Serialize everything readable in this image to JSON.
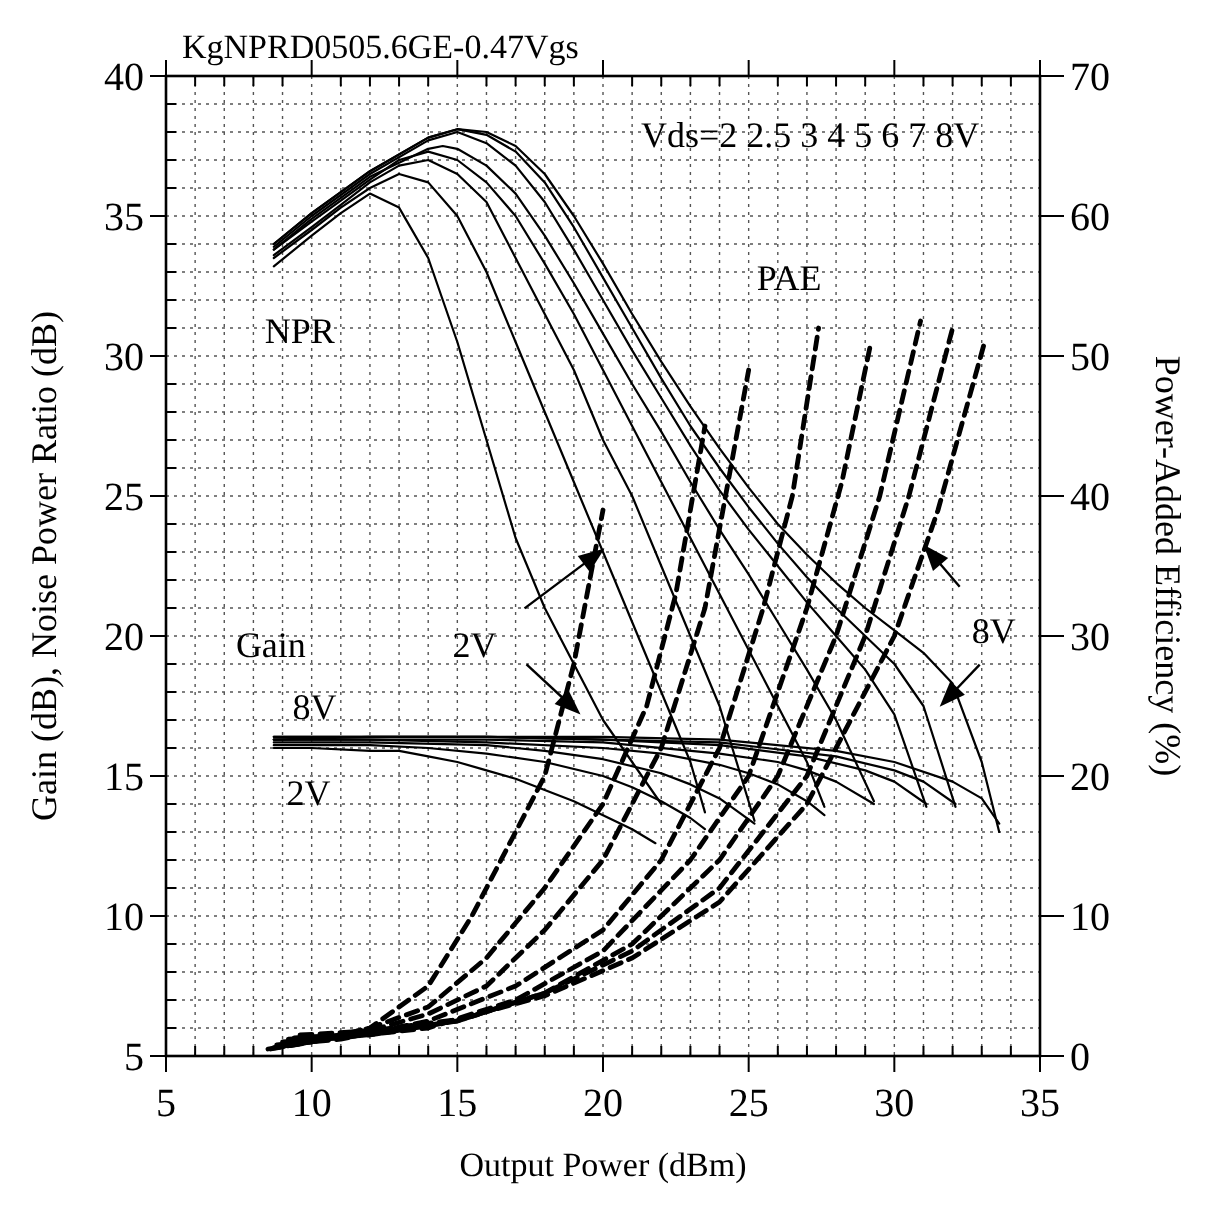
{
  "chart_data": {
    "type": "line",
    "title": "KgNPRD0505.6GE-0.47Vgs",
    "xlabel": "Output Power (dBm)",
    "ylabel": "Gain (dB), Noise Power Ratio (dB)",
    "y2label": "Power-Added Efficiency (%)",
    "xlim": [
      5,
      35
    ],
    "ylim": [
      5,
      40
    ],
    "y2lim": [
      0,
      70
    ],
    "xticks": [
      5,
      {
        "value": 6,
        "label": null
      },
      {
        "value": 7,
        "label": null
      },
      {
        "value": 8,
        "label": null
      },
      {
        "value": 9,
        "label": null
      },
      10,
      {
        "value": 11,
        "label": null
      },
      {
        "value": 12,
        "label": null
      },
      {
        "value": 13,
        "label": null
      },
      {
        "value": 14,
        "label": null
      },
      15,
      {
        "value": 16,
        "label": null
      },
      {
        "value": 17,
        "label": null
      },
      {
        "value": 18,
        "label": null
      },
      {
        "value": 19,
        "label": null
      },
      20,
      {
        "value": 21,
        "label": null
      },
      {
        "value": 22,
        "label": null
      },
      {
        "value": 23,
        "label": null
      },
      {
        "value": 24,
        "label": null
      },
      25,
      {
        "value": 26,
        "label": null
      },
      {
        "value": 27,
        "label": null
      },
      {
        "value": 28,
        "label": null
      },
      {
        "value": 29,
        "label": null
      },
      30,
      {
        "value": 31,
        "label": null
      },
      {
        "value": 32,
        "label": null
      },
      {
        "value": 33,
        "label": null
      },
      {
        "value": 34,
        "label": null
      },
      35
    ],
    "yticks": [
      5,
      {
        "value": 6,
        "label": null
      },
      {
        "value": 7,
        "label": null
      },
      {
        "value": 8,
        "label": null
      },
      {
        "value": 9,
        "label": null
      },
      10,
      {
        "value": 11,
        "label": null
      },
      {
        "value": 12,
        "label": null
      },
      {
        "value": 13,
        "label": null
      },
      {
        "value": 14,
        "label": null
      },
      15,
      {
        "value": 16,
        "label": null
      },
      {
        "value": 17,
        "label": null
      },
      {
        "value": 18,
        "label": null
      },
      {
        "value": 19,
        "label": null
      },
      20,
      {
        "value": 21,
        "label": null
      },
      {
        "value": 22,
        "label": null
      },
      {
        "value": 23,
        "label": null
      },
      {
        "value": 24,
        "label": null
      },
      25,
      {
        "value": 26,
        "label": null
      },
      {
        "value": 27,
        "label": null
      },
      {
        "value": 28,
        "label": null
      },
      {
        "value": 29,
        "label": null
      },
      30,
      {
        "value": 31,
        "label": null
      },
      {
        "value": 32,
        "label": null
      },
      {
        "value": 33,
        "label": null
      },
      {
        "value": 34,
        "label": null
      },
      35,
      {
        "value": 36,
        "label": null
      },
      {
        "value": 37,
        "label": null
      },
      {
        "value": 38,
        "label": null
      },
      {
        "value": 39,
        "label": null
      },
      40
    ],
    "y2ticks": [
      0,
      10,
      20,
      30,
      40,
      50,
      60,
      70
    ],
    "grid": true,
    "line_style": "solid",
    "series": [
      {
        "color": "#000000",
        "x": [
          8.7,
          10,
          11,
          12,
          13,
          14,
          15,
          16,
          17,
          18,
          19,
          20,
          21,
          22
        ],
        "values": [
          33.2,
          34.3,
          35.1,
          35.8,
          35.3,
          33.5,
          30.5,
          27,
          23.5,
          21,
          19,
          17,
          15.5,
          14
        ]
      },
      {
        "type": "line",
        "color": "#000000",
        "x": [
          8.7,
          10,
          11,
          12,
          13,
          14,
          15,
          16,
          17,
          18,
          19,
          20,
          21,
          22,
          23,
          23.5
        ],
        "values": [
          33.5,
          34.5,
          35.3,
          36,
          36.5,
          36.2,
          35,
          33,
          30.5,
          28,
          25.5,
          23,
          20.5,
          18,
          15.5,
          13.7
        ]
      },
      {
        "type": "line",
        "color": "#000000",
        "x": [
          8.7,
          10,
          11,
          12,
          13,
          14,
          15,
          16,
          17,
          18,
          19,
          20,
          21,
          22,
          23,
          24,
          25.2
        ],
        "values": [
          33.6,
          34.6,
          35.4,
          36.2,
          36.8,
          37,
          36.5,
          35.5,
          33.5,
          31.5,
          29.5,
          27,
          25,
          22.5,
          20,
          17.5,
          13.4
        ]
      },
      {
        "type": "line",
        "color": "#000000",
        "x": [
          8.7,
          10,
          12,
          13,
          14,
          15,
          16,
          17,
          18,
          19,
          20,
          21,
          22,
          23,
          24,
          25,
          26,
          27,
          27.6
        ],
        "values": [
          33.8,
          34.8,
          36.3,
          37,
          37.3,
          37,
          36.2,
          35,
          33.3,
          31.5,
          29.5,
          27.5,
          25.5,
          23.5,
          21.5,
          19.5,
          17.5,
          15.5,
          13.9
        ]
      },
      {
        "type": "line",
        "color": "#000000",
        "x": [
          8.7,
          10,
          12,
          14,
          14.5,
          15,
          16,
          17,
          18,
          19,
          20,
          21,
          22,
          23,
          24,
          25,
          26,
          27,
          28,
          29.3
        ],
        "values": [
          33.8,
          34.9,
          36.4,
          37.4,
          37.5,
          37.4,
          36.8,
          35.8,
          34.3,
          32.6,
          30.8,
          29,
          27.3,
          25.5,
          23.8,
          22.2,
          20.5,
          18.8,
          17,
          14.1
        ]
      },
      {
        "type": "line",
        "color": "#000000",
        "x": [
          8.7,
          10,
          12,
          14,
          15,
          16,
          17,
          18,
          19,
          20,
          21,
          22,
          23,
          24,
          25,
          26,
          27,
          28,
          29,
          30,
          31.1
        ],
        "values": [
          33.9,
          35,
          36.5,
          37.7,
          38,
          37.6,
          36.8,
          35.5,
          33.8,
          32,
          30.2,
          28.5,
          26.8,
          25.2,
          23.8,
          22.5,
          21.2,
          20,
          18.8,
          17.2,
          13.9
        ]
      },
      {
        "type": "line",
        "color": "#000000",
        "x": [
          8.7,
          10,
          12,
          14,
          15,
          16,
          17,
          18,
          19,
          20,
          21,
          22,
          23,
          24,
          25,
          26,
          27,
          28,
          29,
          30,
          31,
          32.1
        ],
        "values": [
          34,
          35.1,
          36.6,
          37.8,
          38.1,
          37.9,
          37.3,
          36.2,
          34.6,
          32.8,
          31,
          29.2,
          27.5,
          26,
          24.6,
          23.3,
          22.1,
          21,
          20,
          19,
          17.5,
          13.9
        ]
      },
      {
        "type": "line",
        "color": "#000000",
        "x": [
          8.7,
          10,
          12,
          14,
          15,
          16,
          17,
          18,
          19,
          20,
          21,
          22,
          23,
          24,
          25,
          26,
          27,
          28,
          29,
          30,
          31,
          32,
          33,
          33.6
        ],
        "values": [
          34,
          35.1,
          36.6,
          37.8,
          38.1,
          38,
          37.5,
          36.5,
          35,
          33.3,
          31.5,
          29.8,
          28.2,
          26.7,
          25.3,
          24,
          22.9,
          21.9,
          21,
          20.2,
          19.4,
          18.3,
          15.5,
          13
        ]
      },
      {
        "type": "line",
        "color": "#000000",
        "x": [
          8.7,
          10,
          12,
          13,
          14,
          15,
          16,
          17,
          18,
          19,
          20,
          21,
          21.8
        ],
        "values": [
          16,
          16,
          15.9,
          15.9,
          15.7,
          15.5,
          15.2,
          14.9,
          14.5,
          14.1,
          13.6,
          13.1,
          12.6
        ]
      },
      {
        "type": "line",
        "color": "#000000",
        "x": [
          8.7,
          10,
          12,
          14,
          16,
          18,
          20,
          21,
          22,
          23,
          23.5
        ],
        "values": [
          16.1,
          16.1,
          16.1,
          16,
          15.8,
          15.5,
          15,
          14.6,
          14.1,
          13.5,
          13.1
        ]
      },
      {
        "type": "line",
        "color": "#000000",
        "x": [
          8.7,
          12,
          16,
          18,
          20,
          22,
          23,
          24,
          25.2
        ],
        "values": [
          16.2,
          16.2,
          16.1,
          15.9,
          15.6,
          15.1,
          14.7,
          14.2,
          13.3
        ]
      },
      {
        "type": "line",
        "color": "#000000",
        "x": [
          8.7,
          12,
          16,
          20,
          22,
          24,
          25,
          26,
          27,
          27.6
        ],
        "values": [
          16.3,
          16.3,
          16.2,
          16,
          15.8,
          15.4,
          15.1,
          14.7,
          14.1,
          13.6
        ]
      },
      {
        "type": "line",
        "color": "#000000",
        "x": [
          8.7,
          12,
          16,
          20,
          24,
          26,
          27,
          28,
          29.3
        ],
        "values": [
          16.3,
          16.3,
          16.3,
          16.2,
          15.8,
          15.5,
          15.2,
          14.8,
          14
        ]
      },
      {
        "type": "line",
        "color": "#000000",
        "x": [
          8.7,
          12,
          16,
          20,
          24,
          27,
          29,
          30,
          31.1
        ],
        "values": [
          16.3,
          16.4,
          16.4,
          16.3,
          16.1,
          15.7,
          15.2,
          14.8,
          14
        ]
      },
      {
        "type": "line",
        "color": "#000000",
        "x": [
          8.7,
          12,
          16,
          20,
          24,
          28,
          30,
          31,
          32.1
        ],
        "values": [
          16.4,
          16.4,
          16.4,
          16.3,
          16.2,
          15.7,
          15.2,
          14.8,
          14
        ]
      },
      {
        "type": "line",
        "color": "#000000",
        "x": [
          8.7,
          12,
          16,
          20,
          24,
          28,
          30,
          32,
          33,
          33.6
        ],
        "values": [
          16.4,
          16.4,
          16.4,
          16.4,
          16.3,
          15.9,
          15.5,
          14.8,
          14.2,
          13.3
        ]
      },
      {
        "type": "line",
        "color": "#000000",
        "axis": "y2",
        "line_style": "dashed",
        "x": [
          8.5,
          10,
          12,
          14,
          15.5,
          17,
          18,
          19,
          20
        ],
        "values": [
          0.5,
          1,
          2,
          5,
          10,
          16,
          20,
          28,
          39
        ]
      },
      {
        "type": "line",
        "color": "#000000",
        "axis": "y2",
        "line_style": "dashed",
        "x": [
          8.6,
          10,
          12,
          14,
          16,
          18,
          20,
          21.5,
          22.5,
          23.5
        ],
        "values": [
          0.5,
          1,
          2,
          3.5,
          7,
          12,
          18,
          25,
          33,
          45
        ]
      },
      {
        "type": "line",
        "color": "#000000",
        "axis": "y2",
        "line_style": "dashed",
        "x": [
          8.7,
          10,
          12,
          14,
          16,
          18,
          20,
          22,
          23.5,
          25
        ],
        "values": [
          0.6,
          1,
          1.8,
          3,
          5,
          9,
          14,
          22,
          32,
          49
        ]
      },
      {
        "type": "line",
        "color": "#000000",
        "axis": "y2",
        "line_style": "dashed",
        "x": [
          8.8,
          11,
          14,
          17,
          20,
          22,
          24,
          25.5,
          26.5,
          27.4
        ],
        "values": [
          0.8,
          1.2,
          2.5,
          5,
          9,
          14,
          22,
          32,
          40,
          52
        ]
      },
      {
        "type": "line",
        "color": "#000000",
        "axis": "y2",
        "line_style": "dashed",
        "x": [
          9,
          11,
          14,
          17,
          20,
          23,
          25,
          27,
          28.2,
          29.2
        ],
        "values": [
          1,
          1.3,
          2,
          4,
          7.5,
          14,
          20,
          32,
          41,
          51
        ]
      },
      {
        "type": "line",
        "color": "#000000",
        "axis": "y2",
        "line_style": "dashed",
        "x": [
          9.2,
          12,
          15,
          18,
          21,
          24,
          26,
          28,
          29.5,
          30.9
        ],
        "values": [
          1.2,
          1.5,
          2.5,
          4.5,
          8,
          14,
          20,
          30,
          40,
          52.5
        ]
      },
      {
        "type": "line",
        "color": "#000000",
        "axis": "y2",
        "line_style": "dashed",
        "x": [
          9.4,
          12,
          15,
          18,
          21,
          24,
          27,
          29,
          30.5,
          32
        ],
        "values": [
          1.3,
          1.6,
          2.5,
          4.5,
          7.5,
          12,
          20,
          30,
          40,
          52
        ]
      },
      {
        "type": "line",
        "color": "#000000",
        "axis": "y2",
        "line_style": "dashed",
        "x": [
          9.6,
          12,
          15,
          18,
          21,
          24,
          27,
          30,
          31.5,
          33.1
        ],
        "values": [
          1.5,
          1.8,
          2.6,
          4.3,
          7,
          11,
          18,
          30,
          39,
          51
        ]
      }
    ],
    "annotations": [
      "Vds=2 2.5 3 4 5 6 7 8V",
      "NPR",
      "PAE",
      "Gain",
      "8V",
      "2V",
      "2V",
      "8V"
    ]
  }
}
